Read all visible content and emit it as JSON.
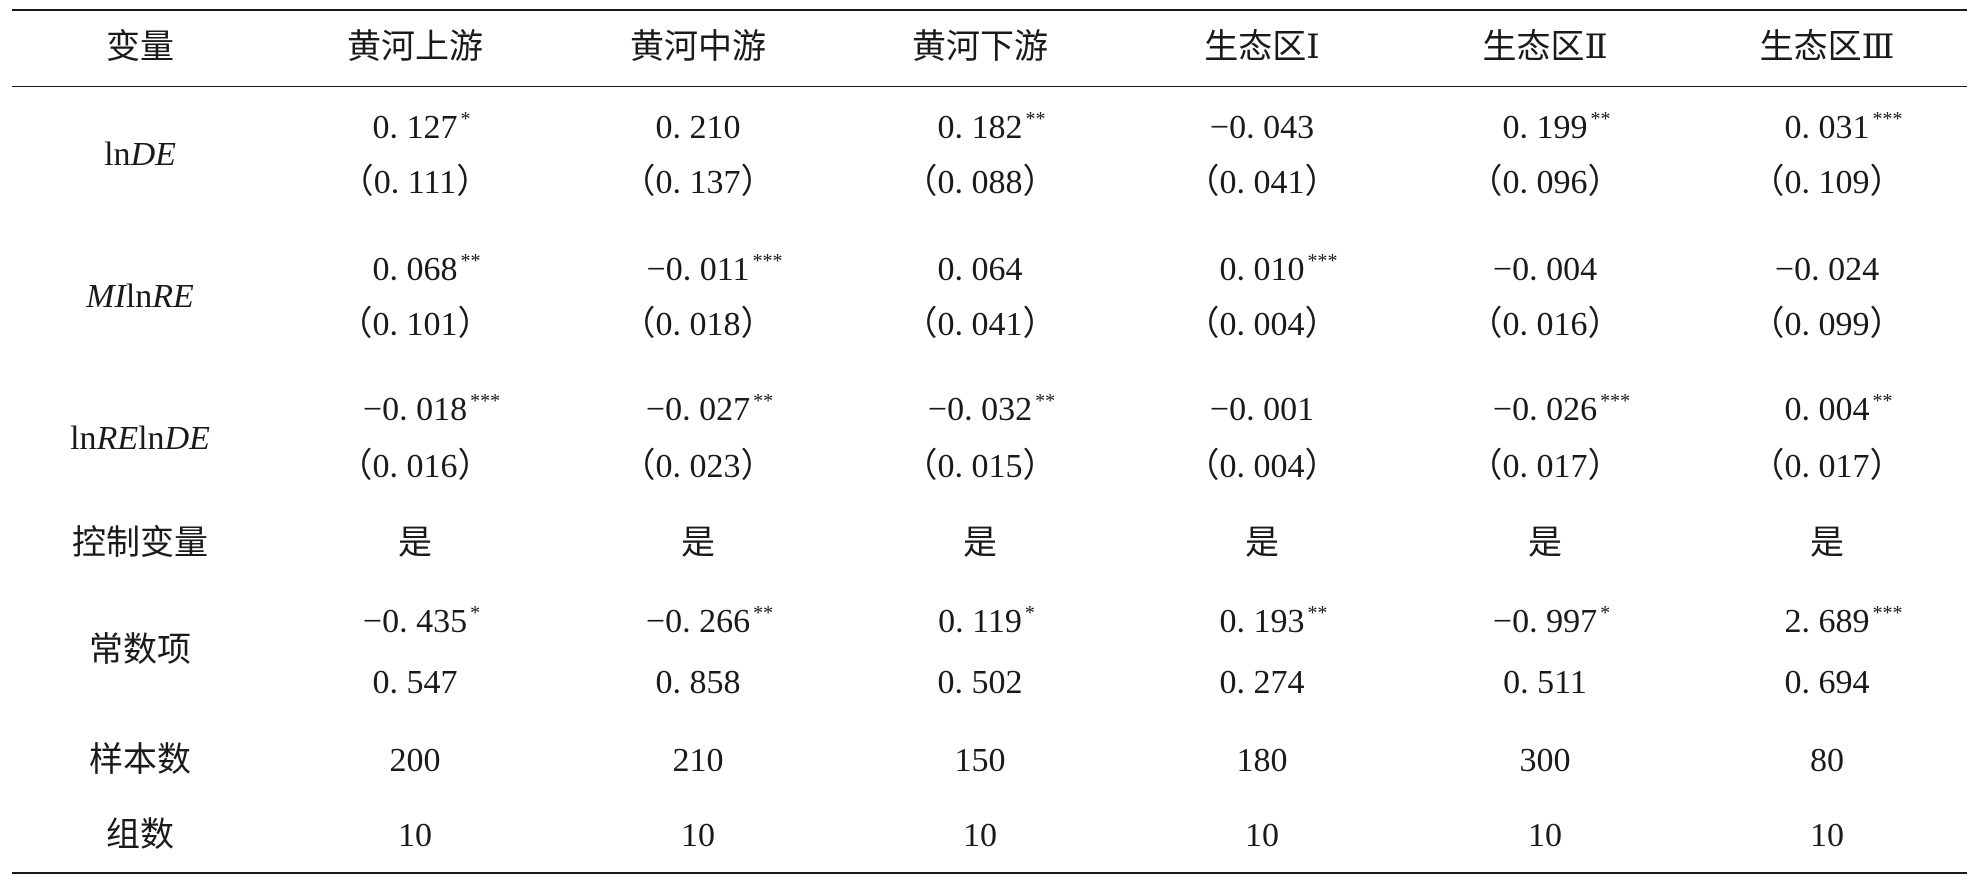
{
  "table": {
    "header": [
      "变量",
      "黄河上游",
      "黄河中游",
      "黄河下游",
      "生态区Ⅰ",
      "生态区Ⅱ",
      "生态区Ⅲ"
    ],
    "rows": [
      {
        "label": [
          {
            "text": "ln",
            "italic": false
          },
          {
            "text": "DE",
            "italic": true
          }
        ],
        "cells": [
          {
            "value": "0. 127",
            "stars": "*",
            "se": "（0. 111）"
          },
          {
            "value": "0. 210",
            "se": "（0. 137）"
          },
          {
            "value": "0. 182",
            "stars": "**",
            "se": "（0. 088）"
          },
          {
            "value": "−0. 043",
            "se": "（0. 041）"
          },
          {
            "value": "0. 199",
            "stars": "**",
            "se": "（0. 096）"
          },
          {
            "value": "0. 031",
            "stars": "***",
            "se": "（0. 109）"
          }
        ]
      },
      {
        "label": [
          {
            "text": "MI",
            "italic": true
          },
          {
            "text": "ln",
            "italic": false
          },
          {
            "text": "RE",
            "italic": true
          }
        ],
        "cells": [
          {
            "value": "0. 068",
            "stars": "**",
            "se": "（0. 101）"
          },
          {
            "value": "−0. 011",
            "stars": "***",
            "se": "（0. 018）"
          },
          {
            "value": "0. 064",
            "se": "（0. 041）"
          },
          {
            "value": "0. 010",
            "stars": "***",
            "se": "（0. 004）"
          },
          {
            "value": "−0. 004",
            "se": "（0. 016）"
          },
          {
            "value": "−0. 024",
            "se": "（0. 099）"
          }
        ]
      },
      {
        "label": [
          {
            "text": "ln",
            "italic": false
          },
          {
            "text": "RE",
            "italic": true
          },
          {
            "text": "ln",
            "italic": false
          },
          {
            "text": "DE",
            "italic": true
          }
        ],
        "cells": [
          {
            "value": "−0. 018",
            "stars": "***",
            "se": "（0. 016）"
          },
          {
            "value": "−0. 027",
            "stars": "**",
            "se": "（0. 023）"
          },
          {
            "value": "−0. 032",
            "stars": "**",
            "se": "（0. 015）"
          },
          {
            "value": "−0. 001",
            "se": "（0. 004）"
          },
          {
            "value": "−0. 026",
            "stars": "***",
            "se": "（0. 017）"
          },
          {
            "value": "0. 004",
            "stars": "**",
            "se": "（0. 017）"
          }
        ]
      },
      {
        "label": [
          {
            "text": "控制变量",
            "italic": false
          }
        ],
        "cells": [
          {
            "value": "是"
          },
          {
            "value": "是"
          },
          {
            "value": "是"
          },
          {
            "value": "是"
          },
          {
            "value": "是"
          },
          {
            "value": "是"
          }
        ]
      },
      {
        "label": [
          {
            "text": "常数项",
            "italic": false
          }
        ],
        "cells": [
          {
            "value": "−0. 435",
            "stars": "*",
            "se": "0. 547"
          },
          {
            "value": "−0. 266",
            "stars": "**",
            "se": "0. 858"
          },
          {
            "value": "0. 119",
            "stars": "*",
            "se": "0. 502"
          },
          {
            "value": "0. 193",
            "stars": "**",
            "se": "0. 274"
          },
          {
            "value": "−0. 997",
            "stars": "*",
            "se": "0. 511"
          },
          {
            "value": "2. 689",
            "stars": "***",
            "se": "0. 694"
          }
        ]
      },
      {
        "label": [
          {
            "text": "样本数",
            "italic": false
          }
        ],
        "cells": [
          {
            "value": "200"
          },
          {
            "value": "210"
          },
          {
            "value": "150"
          },
          {
            "value": "180"
          },
          {
            "value": "300"
          },
          {
            "value": "80"
          }
        ]
      },
      {
        "label": [
          {
            "text": "组数",
            "italic": false
          }
        ],
        "cells": [
          {
            "value": "10"
          },
          {
            "value": "10"
          },
          {
            "value": "10"
          },
          {
            "value": "10"
          },
          {
            "value": "10"
          },
          {
            "value": "10"
          }
        ]
      }
    ]
  }
}
